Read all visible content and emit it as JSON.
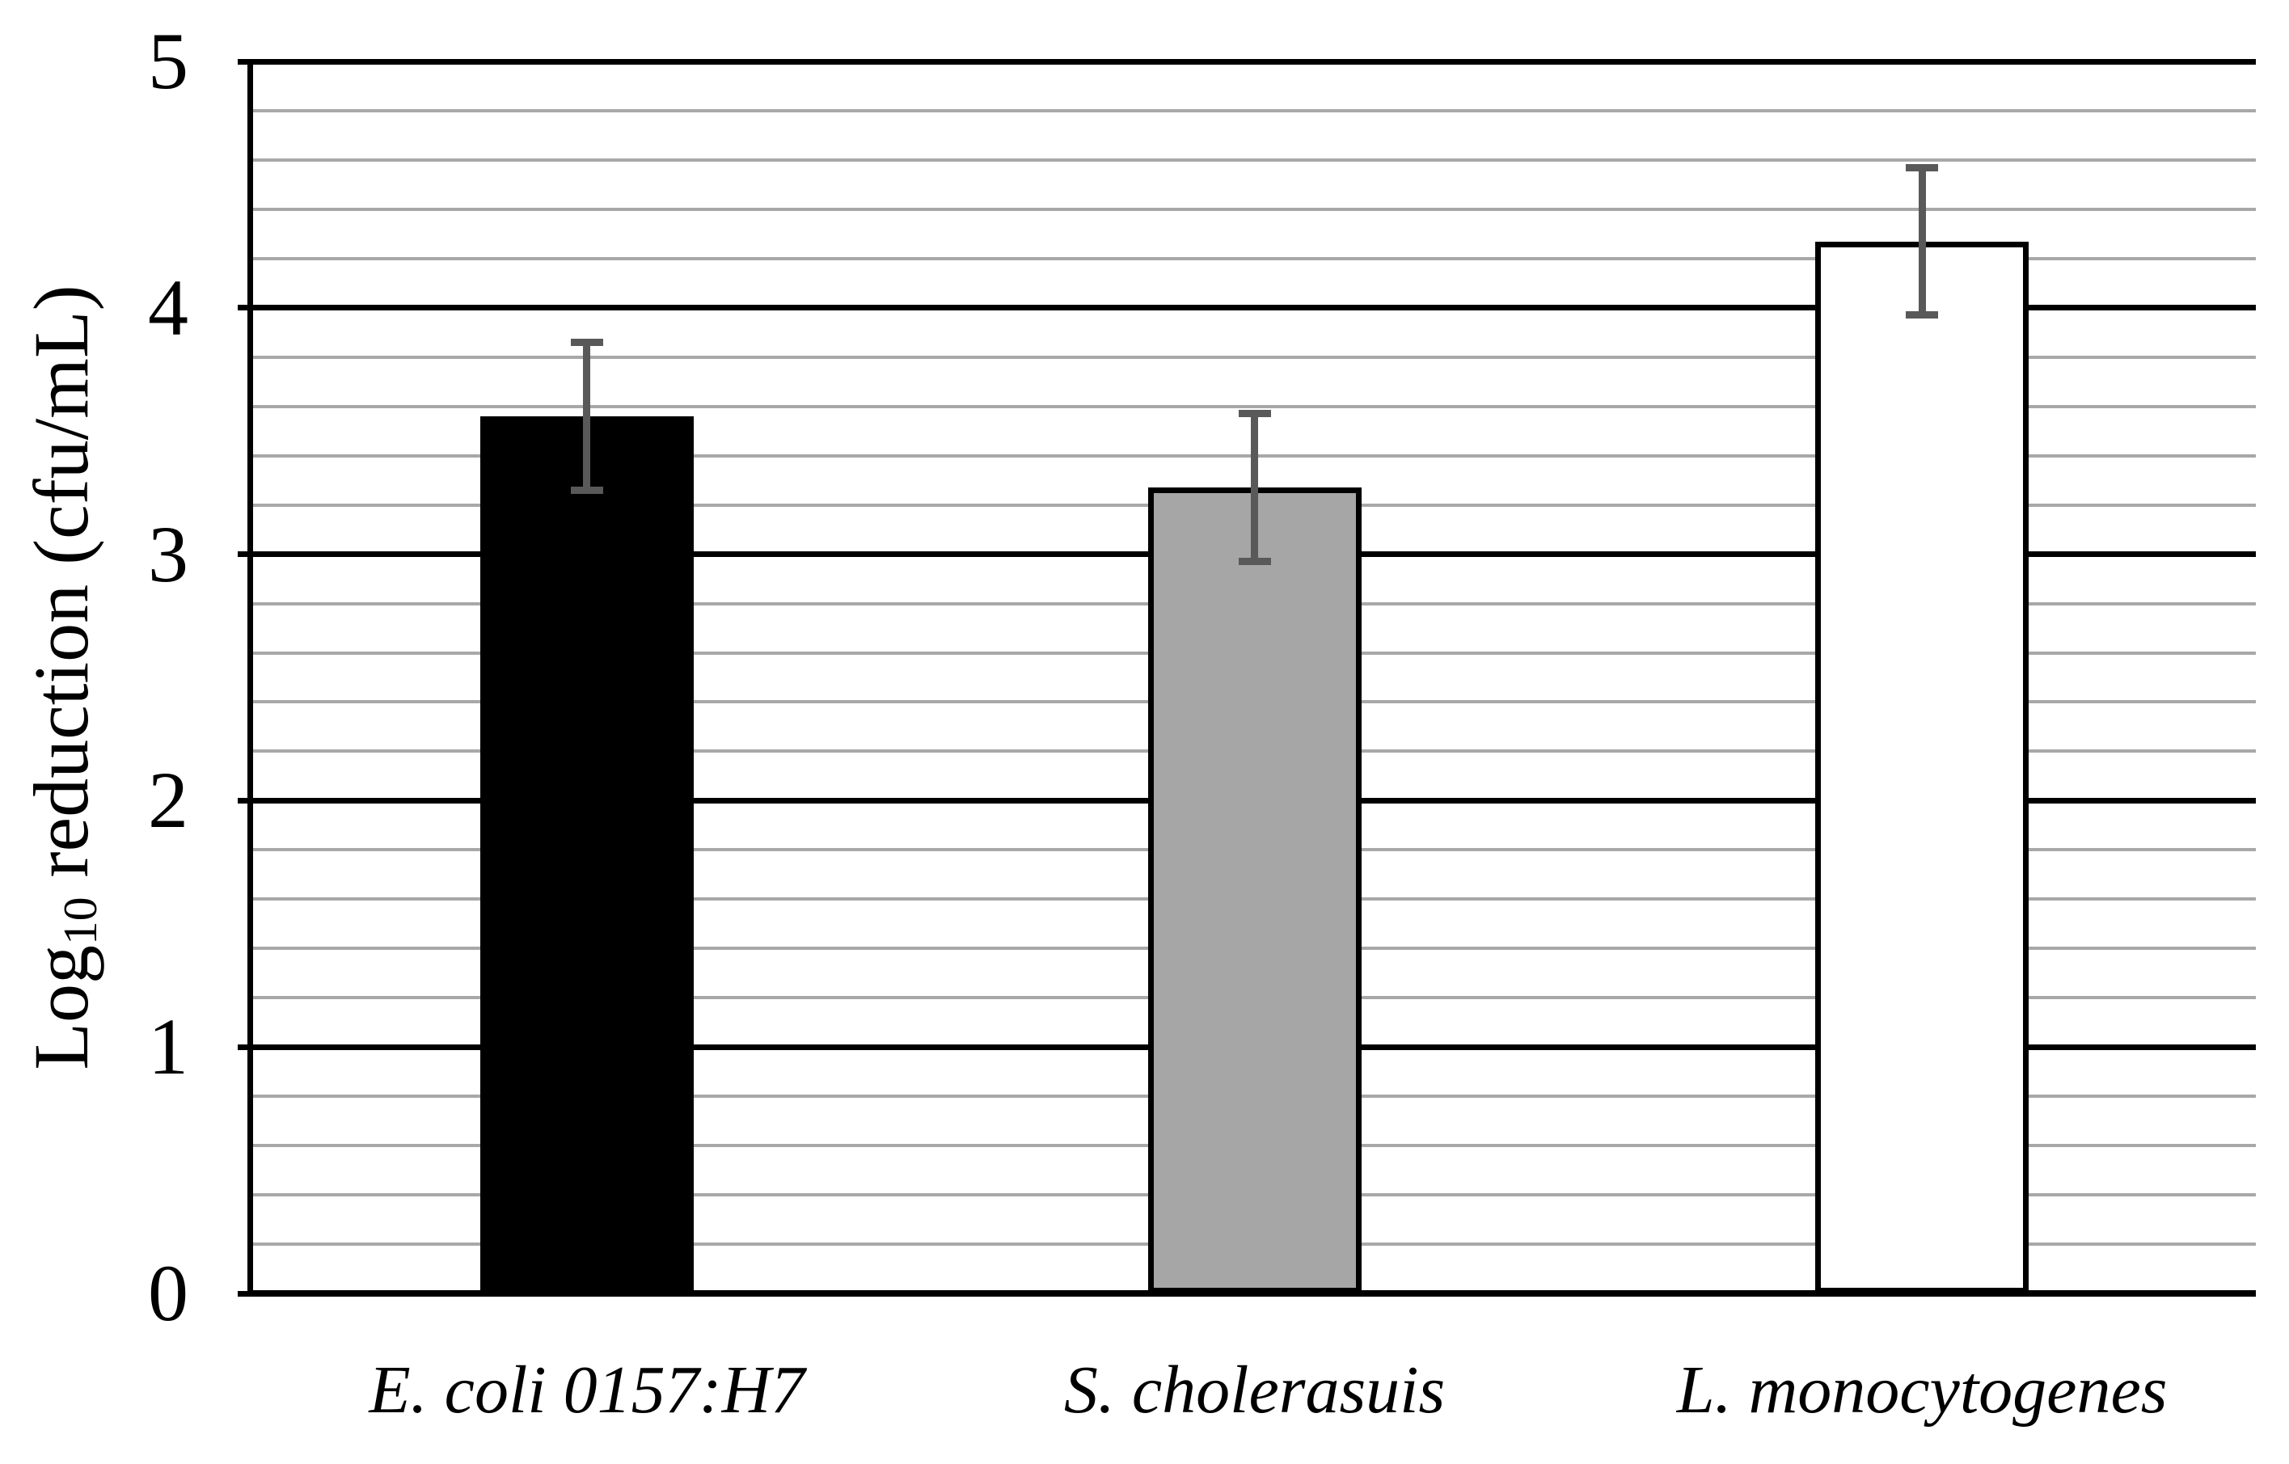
{
  "figure": {
    "background": "#ffffff"
  },
  "y_axis": {
    "title_parts": {
      "prefix": "Log",
      "subscript": "10",
      "suffix": " reduction  (cfu/mL)"
    },
    "tick_labels": [
      "5",
      "4",
      "3",
      "2",
      "1",
      "0"
    ]
  },
  "chart_data": {
    "type": "bar",
    "categories": [
      "E. coli 0157:H7",
      "S. cholerasuis",
      "L. monocytogenes"
    ],
    "values": [
      3.56,
      3.27,
      4.27
    ],
    "error": [
      0.3,
      0.3,
      0.3
    ],
    "title": "",
    "xlabel": "",
    "ylabel": "Log10 reduction (cfu/mL)",
    "ylim": [
      0,
      5
    ],
    "ytick_step": 1,
    "minor_tick_step": 0.2,
    "yticks": [
      0,
      1,
      2,
      3,
      4,
      5
    ],
    "grid": "horizontal, major black + minor gray, no right border",
    "legend_position": "none",
    "bar_fill_colors": [
      "#000000",
      "#a6a6a6",
      "#ffffff"
    ],
    "bar_border_color": "#000000",
    "colors": {
      "major_grid": "#000000",
      "minor_grid": "#a8a8a8",
      "error_bar": "#595959",
      "axis": "#000000",
      "background": "#ffffff"
    }
  }
}
